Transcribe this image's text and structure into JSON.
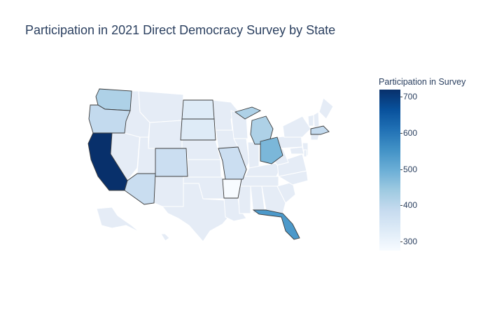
{
  "chart_data": {
    "type": "choropleth",
    "title": "Participation in 2021 Direct Democracy Survey by State",
    "colorbar": {
      "title": "Participation in Survey",
      "min": 275,
      "max": 720,
      "ticks": [
        300,
        400,
        500,
        600,
        700
      ],
      "colorscale": [
        "#f7fbff",
        "#deebf7",
        "#c6dbef",
        "#9ecae1",
        "#6baed6",
        "#4292c6",
        "#2171b5",
        "#08519c",
        "#08306b"
      ]
    },
    "states_with_data": [
      {
        "state": "CA",
        "value": 720
      },
      {
        "state": "FL",
        "value": 540
      },
      {
        "state": "OH",
        "value": 480
      },
      {
        "state": "WA",
        "value": 420
      },
      {
        "state": "MI",
        "value": 420
      },
      {
        "state": "OR",
        "value": 390
      },
      {
        "state": "MA",
        "value": 390
      },
      {
        "state": "AZ",
        "value": 380
      },
      {
        "state": "CO",
        "value": 375
      },
      {
        "state": "MO",
        "value": 375
      },
      {
        "state": "ND",
        "value": 330
      },
      {
        "state": "SD",
        "value": 330
      },
      {
        "state": "AR",
        "value": 275
      }
    ],
    "no_data_color": "#e5ecf6"
  }
}
